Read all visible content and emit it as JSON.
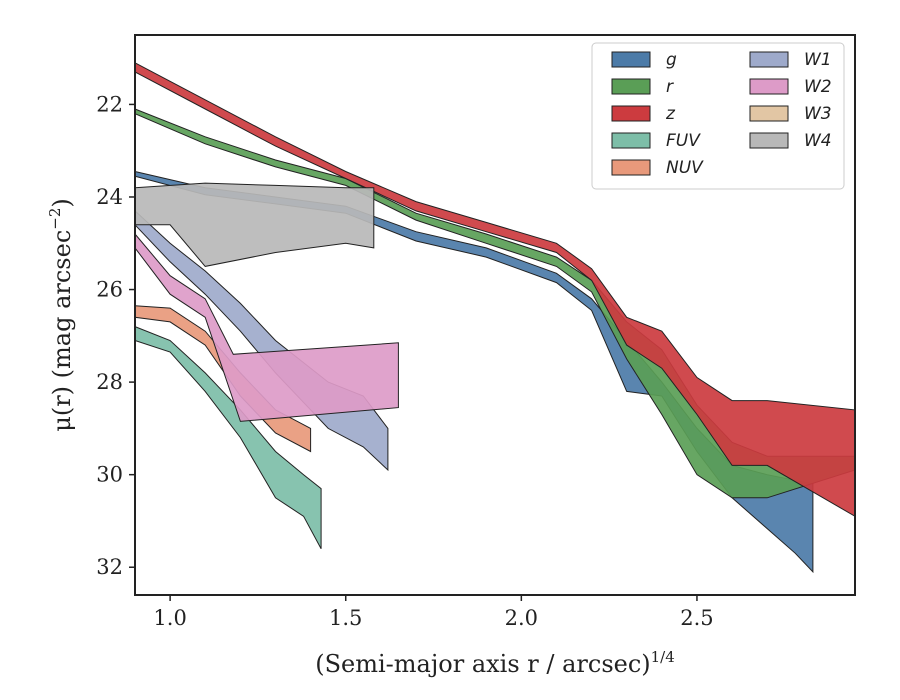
{
  "chart_data": {
    "type": "area",
    "xlabel": "(Semi-major axis r / arcsec)1/4",
    "ylabel": "μ(r) (mag arcsec−2)",
    "xlim": [
      0.9,
      2.95
    ],
    "ylim": [
      32.6,
      20.5
    ],
    "y_inverted": true,
    "xticks": [
      "1.0",
      "1.5",
      "2.0",
      "2.5"
    ],
    "xtick_values": [
      1.0,
      1.5,
      2.0,
      2.5
    ],
    "yticks": [
      "22",
      "24",
      "26",
      "28",
      "30",
      "32"
    ],
    "ytick_values": [
      22,
      24,
      26,
      28,
      30,
      32
    ],
    "grid": false,
    "legend_position": "top-right",
    "series": [
      {
        "name": "g",
        "color": "#4c7ba8",
        "upper": [
          [
            0.9,
            23.45
          ],
          [
            1.1,
            23.8
          ],
          [
            1.3,
            24.0
          ],
          [
            1.5,
            24.2
          ],
          [
            1.7,
            24.75
          ],
          [
            1.9,
            25.1
          ],
          [
            2.1,
            25.65
          ],
          [
            2.2,
            26.2
          ],
          [
            2.3,
            27.1
          ],
          [
            2.4,
            28.0
          ],
          [
            2.5,
            29.0
          ],
          [
            2.6,
            29.8
          ],
          [
            2.7,
            30.0
          ],
          [
            2.83,
            30.2
          ]
        ],
        "lower": [
          [
            0.9,
            23.55
          ],
          [
            1.1,
            23.95
          ],
          [
            1.3,
            24.15
          ],
          [
            1.5,
            24.35
          ],
          [
            1.7,
            24.95
          ],
          [
            1.9,
            25.3
          ],
          [
            2.1,
            25.85
          ],
          [
            2.2,
            26.45
          ],
          [
            2.3,
            28.2
          ],
          [
            2.4,
            28.3
          ],
          [
            2.5,
            29.5
          ],
          [
            2.6,
            30.5
          ],
          [
            2.78,
            31.7
          ],
          [
            2.83,
            32.1
          ]
        ]
      },
      {
        "name": "r",
        "color": "#5a9e56",
        "upper": [
          [
            0.9,
            22.1
          ],
          [
            1.1,
            22.7
          ],
          [
            1.3,
            23.2
          ],
          [
            1.5,
            23.6
          ],
          [
            1.7,
            24.35
          ],
          [
            1.9,
            24.8
          ],
          [
            2.1,
            25.3
          ],
          [
            2.2,
            25.8
          ],
          [
            2.3,
            26.7
          ],
          [
            2.4,
            27.3
          ],
          [
            2.5,
            28.5
          ],
          [
            2.6,
            29.3
          ],
          [
            2.7,
            29.6
          ],
          [
            2.95,
            29.6
          ]
        ],
        "lower": [
          [
            0.9,
            22.2
          ],
          [
            1.1,
            22.85
          ],
          [
            1.3,
            23.35
          ],
          [
            1.5,
            23.75
          ],
          [
            1.7,
            24.5
          ],
          [
            1.9,
            25.0
          ],
          [
            2.1,
            25.5
          ],
          [
            2.2,
            26.05
          ],
          [
            2.3,
            27.5
          ],
          [
            2.4,
            28.7
          ],
          [
            2.5,
            30.0
          ],
          [
            2.6,
            30.5
          ],
          [
            2.7,
            30.5
          ],
          [
            2.95,
            29.9
          ]
        ]
      },
      {
        "name": "z",
        "color": "#cc3b3f",
        "upper": [
          [
            0.9,
            21.1
          ],
          [
            1.1,
            21.9
          ],
          [
            1.3,
            22.7
          ],
          [
            1.5,
            23.45
          ],
          [
            1.7,
            24.1
          ],
          [
            1.9,
            24.55
          ],
          [
            2.1,
            25.0
          ],
          [
            2.2,
            25.55
          ],
          [
            2.3,
            26.6
          ],
          [
            2.4,
            26.9
          ],
          [
            2.5,
            27.9
          ],
          [
            2.6,
            28.4
          ],
          [
            2.7,
            28.4
          ],
          [
            2.95,
            28.6
          ]
        ],
        "lower": [
          [
            0.9,
            21.3
          ],
          [
            1.1,
            22.1
          ],
          [
            1.3,
            22.9
          ],
          [
            1.5,
            23.6
          ],
          [
            1.7,
            24.3
          ],
          [
            1.9,
            24.75
          ],
          [
            2.1,
            25.2
          ],
          [
            2.2,
            25.8
          ],
          [
            2.3,
            27.2
          ],
          [
            2.4,
            27.7
          ],
          [
            2.5,
            28.7
          ],
          [
            2.6,
            29.8
          ],
          [
            2.7,
            29.8
          ],
          [
            2.95,
            30.9
          ]
        ]
      },
      {
        "name": "FUV",
        "color": "#7dbea8",
        "upper": [
          [
            0.9,
            26.8
          ],
          [
            1.0,
            27.1
          ],
          [
            1.1,
            27.8
          ],
          [
            1.2,
            28.6
          ],
          [
            1.3,
            29.5
          ],
          [
            1.38,
            30.0
          ],
          [
            1.43,
            30.3
          ]
        ],
        "lower": [
          [
            0.9,
            27.1
          ],
          [
            1.0,
            27.35
          ],
          [
            1.1,
            28.2
          ],
          [
            1.2,
            29.2
          ],
          [
            1.3,
            30.5
          ],
          [
            1.38,
            30.9
          ],
          [
            1.43,
            31.6
          ]
        ]
      },
      {
        "name": "NUV",
        "color": "#e8997b",
        "upper": [
          [
            0.9,
            26.35
          ],
          [
            1.0,
            26.4
          ],
          [
            1.1,
            26.9
          ],
          [
            1.2,
            27.8
          ],
          [
            1.3,
            28.6
          ],
          [
            1.4,
            29.0
          ]
        ],
        "lower": [
          [
            0.9,
            26.6
          ],
          [
            1.0,
            26.7
          ],
          [
            1.1,
            27.2
          ],
          [
            1.2,
            28.3
          ],
          [
            1.3,
            29.1
          ],
          [
            1.4,
            29.5
          ]
        ]
      },
      {
        "name": "W1",
        "color": "#9eaacb",
        "upper": [
          [
            0.9,
            24.3
          ],
          [
            1.0,
            25.0
          ],
          [
            1.1,
            25.6
          ],
          [
            1.2,
            26.3
          ],
          [
            1.3,
            27.1
          ],
          [
            1.45,
            28.0
          ],
          [
            1.55,
            28.3
          ],
          [
            1.62,
            29.0
          ]
        ],
        "lower": [
          [
            0.9,
            24.6
          ],
          [
            1.0,
            25.4
          ],
          [
            1.1,
            26.1
          ],
          [
            1.2,
            26.9
          ],
          [
            1.3,
            27.8
          ],
          [
            1.45,
            29.0
          ],
          [
            1.55,
            29.4
          ],
          [
            1.62,
            29.9
          ]
        ]
      },
      {
        "name": "W2",
        "color": "#dd9bc8",
        "upper": [
          [
            0.9,
            24.8
          ],
          [
            1.0,
            25.7
          ],
          [
            1.1,
            26.2
          ],
          [
            1.18,
            27.4
          ],
          [
            1.65,
            27.15
          ]
        ],
        "lower": [
          [
            0.9,
            25.1
          ],
          [
            1.0,
            26.1
          ],
          [
            1.1,
            26.6
          ],
          [
            1.2,
            28.85
          ],
          [
            1.65,
            28.55
          ]
        ]
      },
      {
        "name": "W3",
        "color": "#e2c6a4",
        "upper": [],
        "lower": []
      },
      {
        "name": "W4",
        "color": "#b8b8b8",
        "upper": [
          [
            0.9,
            23.8
          ],
          [
            1.1,
            23.7
          ],
          [
            1.3,
            23.75
          ],
          [
            1.5,
            23.8
          ],
          [
            1.58,
            23.8
          ]
        ],
        "lower": [
          [
            0.9,
            24.6
          ],
          [
            1.0,
            24.6
          ],
          [
            1.1,
            25.5
          ],
          [
            1.3,
            25.2
          ],
          [
            1.5,
            25.0
          ],
          [
            1.58,
            25.1
          ]
        ]
      }
    ]
  }
}
